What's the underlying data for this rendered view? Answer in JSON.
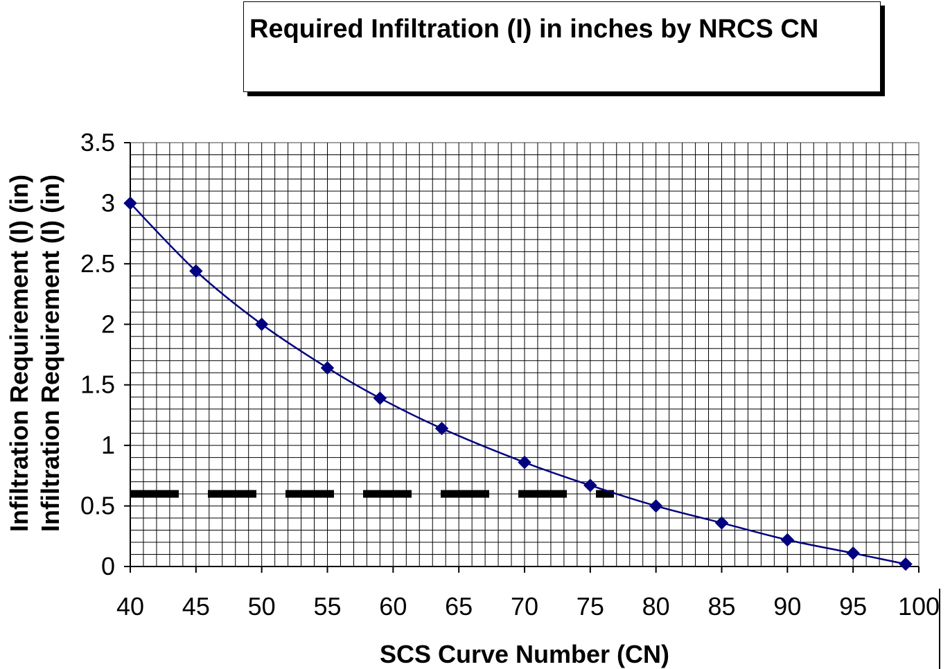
{
  "chart_data": {
    "type": "line",
    "title": "Required Infiltration (I) in inches by NRCS CN",
    "xlabel": "SCS Curve Number (CN)",
    "ylabel": "Infiltration Requirement (I) (in)",
    "ylabel_repeat": "Infiltration Requirement (I) (in)",
    "xlim": [
      40,
      100
    ],
    "ylim": [
      0,
      3.5
    ],
    "x_ticks": [
      40,
      45,
      50,
      55,
      60,
      65,
      70,
      75,
      80,
      85,
      90,
      95,
      100
    ],
    "y_ticks": [
      0,
      0.5,
      1,
      1.5,
      2,
      2.5,
      3,
      3.5
    ],
    "x_tick_labels": [
      "40",
      "45",
      "50",
      "55",
      "60",
      "65",
      "70",
      "75",
      "80",
      "85",
      "90",
      "95",
      "100"
    ],
    "y_tick_labels": [
      "0",
      "0.5",
      "1",
      "1.5",
      "2",
      "2.5",
      "3",
      "3.5"
    ],
    "grid": true,
    "minor_grid_x_step": 1,
    "minor_grid_y_step": 0.1,
    "series": [
      {
        "color": "#000080",
        "marker": "diamond",
        "x": [
          40,
          45,
          50,
          55,
          59,
          63.7,
          70,
          75,
          80,
          85,
          90,
          95,
          99
        ],
        "y": [
          3.0,
          2.44,
          2.0,
          1.64,
          1.39,
          1.14,
          0.86,
          0.67,
          0.5,
          0.36,
          0.22,
          0.11,
          0.02
        ]
      }
    ],
    "reference_line": {
      "y": 0.6,
      "x_start": 40,
      "x_end": 76.8,
      "style": "dashed",
      "color": "#000000"
    }
  }
}
